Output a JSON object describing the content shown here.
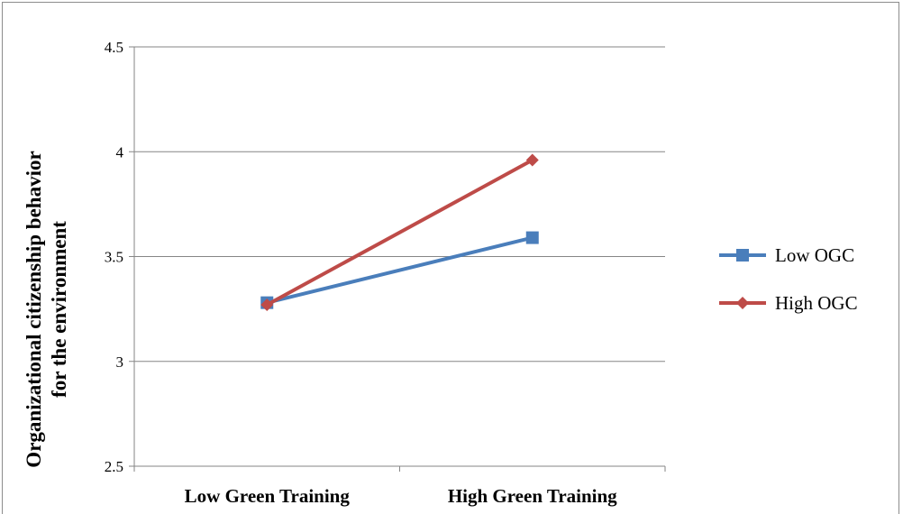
{
  "chart_data": {
    "type": "line",
    "categories": [
      "Low Green Training",
      "High Green Training"
    ],
    "series": [
      {
        "name": "Low OGC",
        "values": [
          3.28,
          3.59
        ],
        "color": "#4a7ebb",
        "marker": "square"
      },
      {
        "name": "High OGC",
        "values": [
          3.27,
          3.96
        ],
        "color": "#be4b48",
        "marker": "diamond"
      }
    ],
    "ylabel_lines": [
      "Organizational citizenship behavior",
      "for the environment"
    ],
    "ylim": [
      2.5,
      4.5
    ],
    "yticks": [
      2.5,
      3,
      3.5,
      4,
      4.5
    ],
    "ytick_labels": [
      "2.5",
      "3",
      "3.5",
      "4",
      "4.5"
    ],
    "grid": true,
    "legend_position": "right"
  }
}
